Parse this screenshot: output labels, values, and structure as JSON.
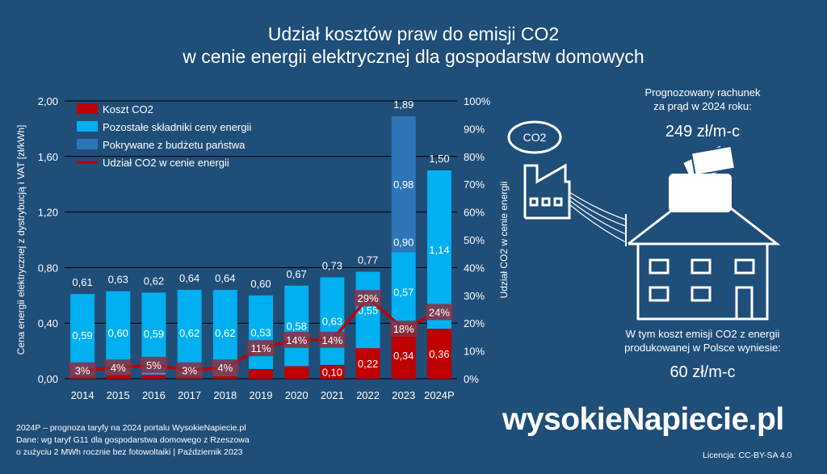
{
  "title": {
    "line1": "Udział kosztów praw do emisji CO2",
    "line2": "w cenie energii elektrycznej dla gospodarstw domowych"
  },
  "chart_data": {
    "type": "bar",
    "categories": [
      "2014",
      "2015",
      "2016",
      "2017",
      "2018",
      "2019",
      "2020",
      "2021",
      "2022",
      "2023",
      "2024P"
    ],
    "series": [
      {
        "name": "Koszt CO2",
        "color": "#c00000",
        "values": [
          0.02,
          0.03,
          0.03,
          0.02,
          0.02,
          0.07,
          0.09,
          0.1,
          0.22,
          0.34,
          0.36
        ],
        "labels": [
          "",
          "",
          "",
          "",
          "",
          "",
          "",
          "0,10",
          "0,22",
          "0,34",
          "0,36"
        ]
      },
      {
        "name": "Pozostałe składniki ceny energii",
        "color": "#00b0f0",
        "values": [
          0.59,
          0.6,
          0.59,
          0.62,
          0.62,
          0.53,
          0.58,
          0.63,
          0.55,
          0.57,
          1.14
        ],
        "labels": [
          "0,59",
          "0,60",
          "0,59",
          "0,62",
          "0,62",
          "0,53",
          "0,58",
          "0,63",
          "0,55",
          "0,57",
          "1,14"
        ]
      },
      {
        "name": "Pokrywane z budżetu państwa",
        "color": "#2e75b6",
        "values": [
          0,
          0,
          0,
          0,
          0,
          0,
          0,
          0,
          0,
          0.98,
          0
        ],
        "labels": [
          "",
          "",
          "",
          "",
          "",
          "",
          "",
          "",
          "",
          "0,98",
          ""
        ]
      },
      {
        "name": "Udział CO2 w cenie energii",
        "type": "line",
        "color": "#c00000",
        "axis": "right",
        "values": [
          3,
          4,
          5,
          3,
          4,
          11,
          14,
          14,
          29,
          18,
          24
        ],
        "labels": [
          "3%",
          "4%",
          "5%",
          "3%",
          "4%",
          "11%",
          "14%",
          "14%",
          "29%",
          "18%",
          "24%"
        ]
      }
    ],
    "totals": [
      "0,61",
      "0,63",
      "0,62",
      "0,64",
      "0,64",
      "0,60",
      "0,67",
      "0,73",
      "0,77",
      "1,89",
      "1,50"
    ],
    "total_values": [
      0.61,
      0.63,
      0.62,
      0.64,
      0.64,
      0.6,
      0.67,
      0.73,
      0.77,
      1.89,
      1.5
    ],
    "mid_labels": {
      "9": "0,90"
    },
    "ylabel": "Cena energii elektrycznej z dystrybucją i VAT  [zł/kWh]",
    "ylabel_right": "Udział CO2 w cenie energii",
    "ylim": [
      0,
      2
    ],
    "yticks": [
      "0,00",
      "0,40",
      "0,80",
      "1,20",
      "1,60",
      "2,00"
    ],
    "ylim_right": [
      0,
      100
    ],
    "yticks_right": [
      "0%",
      "10%",
      "20%",
      "30%",
      "40%",
      "50%",
      "60%",
      "70%",
      "80%",
      "90%",
      "100%"
    ],
    "grid": true,
    "legend": "top-left"
  },
  "side": {
    "forecast_label_1": "Prognozowany rachunek",
    "forecast_label_2": "za prąd w 2024 roku:",
    "forecast_value": "249 zł/m-c",
    "co2_label_1": "W tym koszt emisji CO2 z energii",
    "co2_label_2": "produkowanej w Polsce wyniesie:",
    "co2_value": "60 zł/m-c",
    "cloud_text": "CO2"
  },
  "footer": {
    "line1": "2024P – prognoza taryfy na 2024 portalu WysokieNapiecie.pl",
    "line2": "Dane: wg taryf G11 dla gospodarstwa domowego z Rzeszowa",
    "line3": "o zużyciu 2 MWh rocznie bez fotowoltaiki  | Październik  2023"
  },
  "logo": {
    "text": "wysokieNapiecie.pl"
  },
  "license": "Licencja: CC-BY-SA 4.0",
  "icons": {
    "factory": "factory-icon",
    "house": "house-icon",
    "wallet": "wallet-icon",
    "power-line": "power-line-icon"
  }
}
